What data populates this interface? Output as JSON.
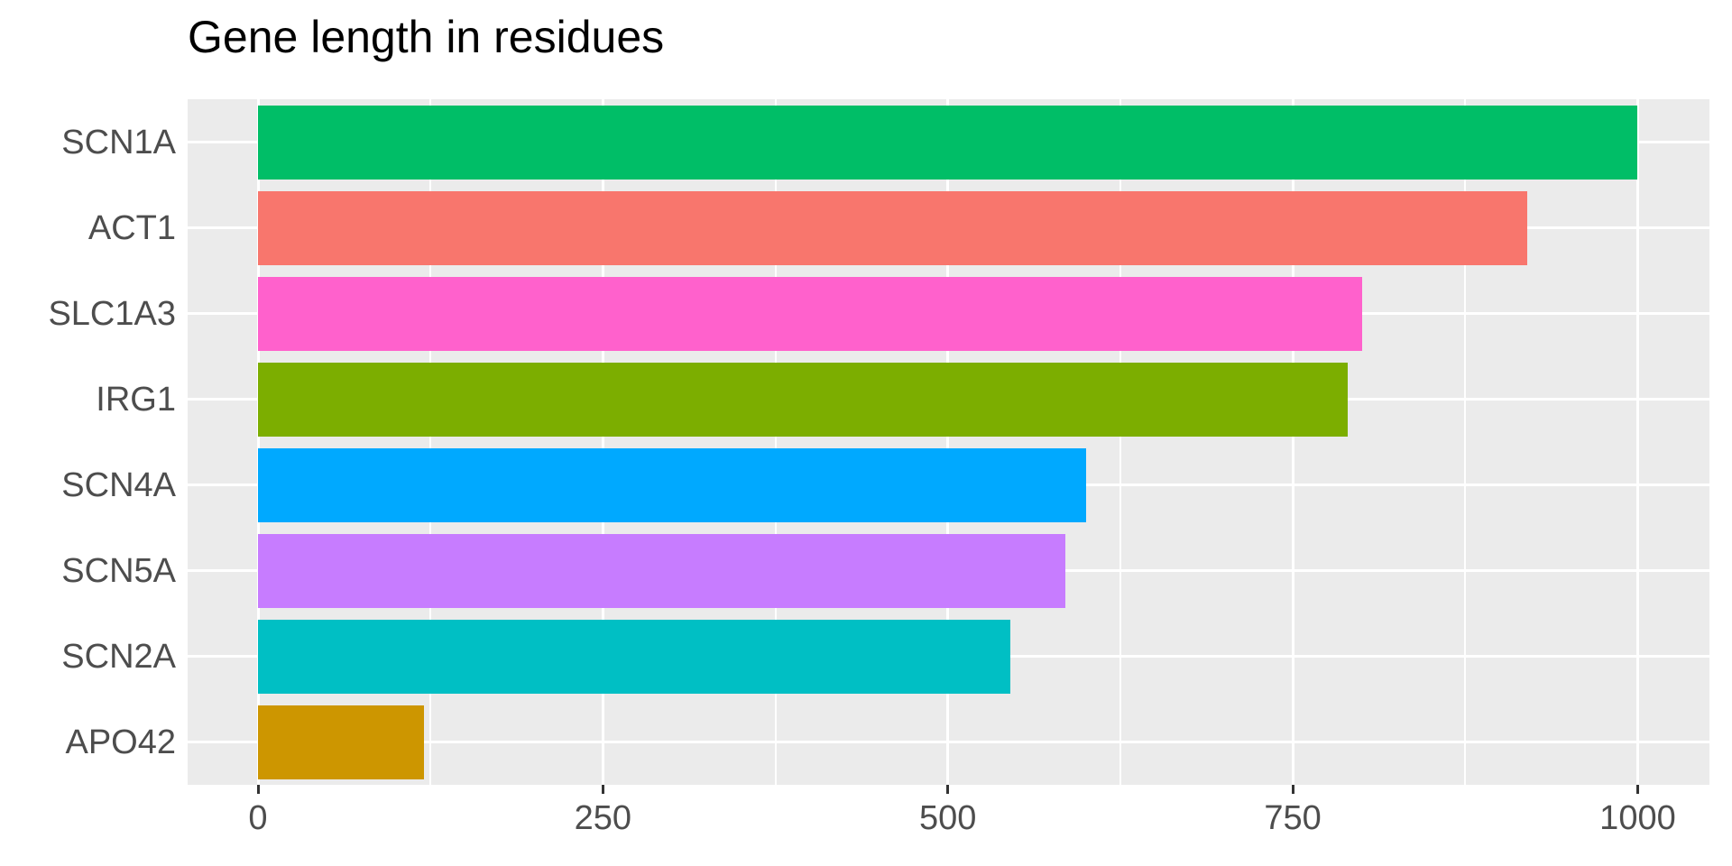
{
  "chart_data": {
    "type": "bar",
    "orientation": "horizontal",
    "title": "Gene length in residues",
    "categories": [
      "SCN1A",
      "ACT1",
      "SLC1A3",
      "IRG1",
      "SCN4A",
      "SCN5A",
      "SCN2A",
      "APO42"
    ],
    "values": [
      1000,
      920,
      800,
      790,
      600,
      585,
      545,
      120
    ],
    "bar_colors": [
      "#00BE67",
      "#F8766D",
      "#FF61CC",
      "#7CAE00",
      "#00A9FF",
      "#C77CFF",
      "#00BFC4",
      "#CD9600"
    ],
    "x_ticks": [
      0,
      250,
      500,
      750,
      1000
    ],
    "x_tick_labels": [
      "0",
      "250",
      "500",
      "750",
      "1000"
    ],
    "x_minor_ticks": [
      125,
      375,
      625,
      875
    ],
    "xlim": [
      -51,
      1052
    ],
    "xlabel": "",
    "ylabel": "",
    "grid": "major and minor vertical, major horizontal",
    "legend_position": "none",
    "panel_bg": "#EBEBEB",
    "grid_color": "#FFFFFF",
    "tick_label_color": "#4D4D4D",
    "axis_tick_color": "#333333",
    "title_color": "#000000"
  }
}
